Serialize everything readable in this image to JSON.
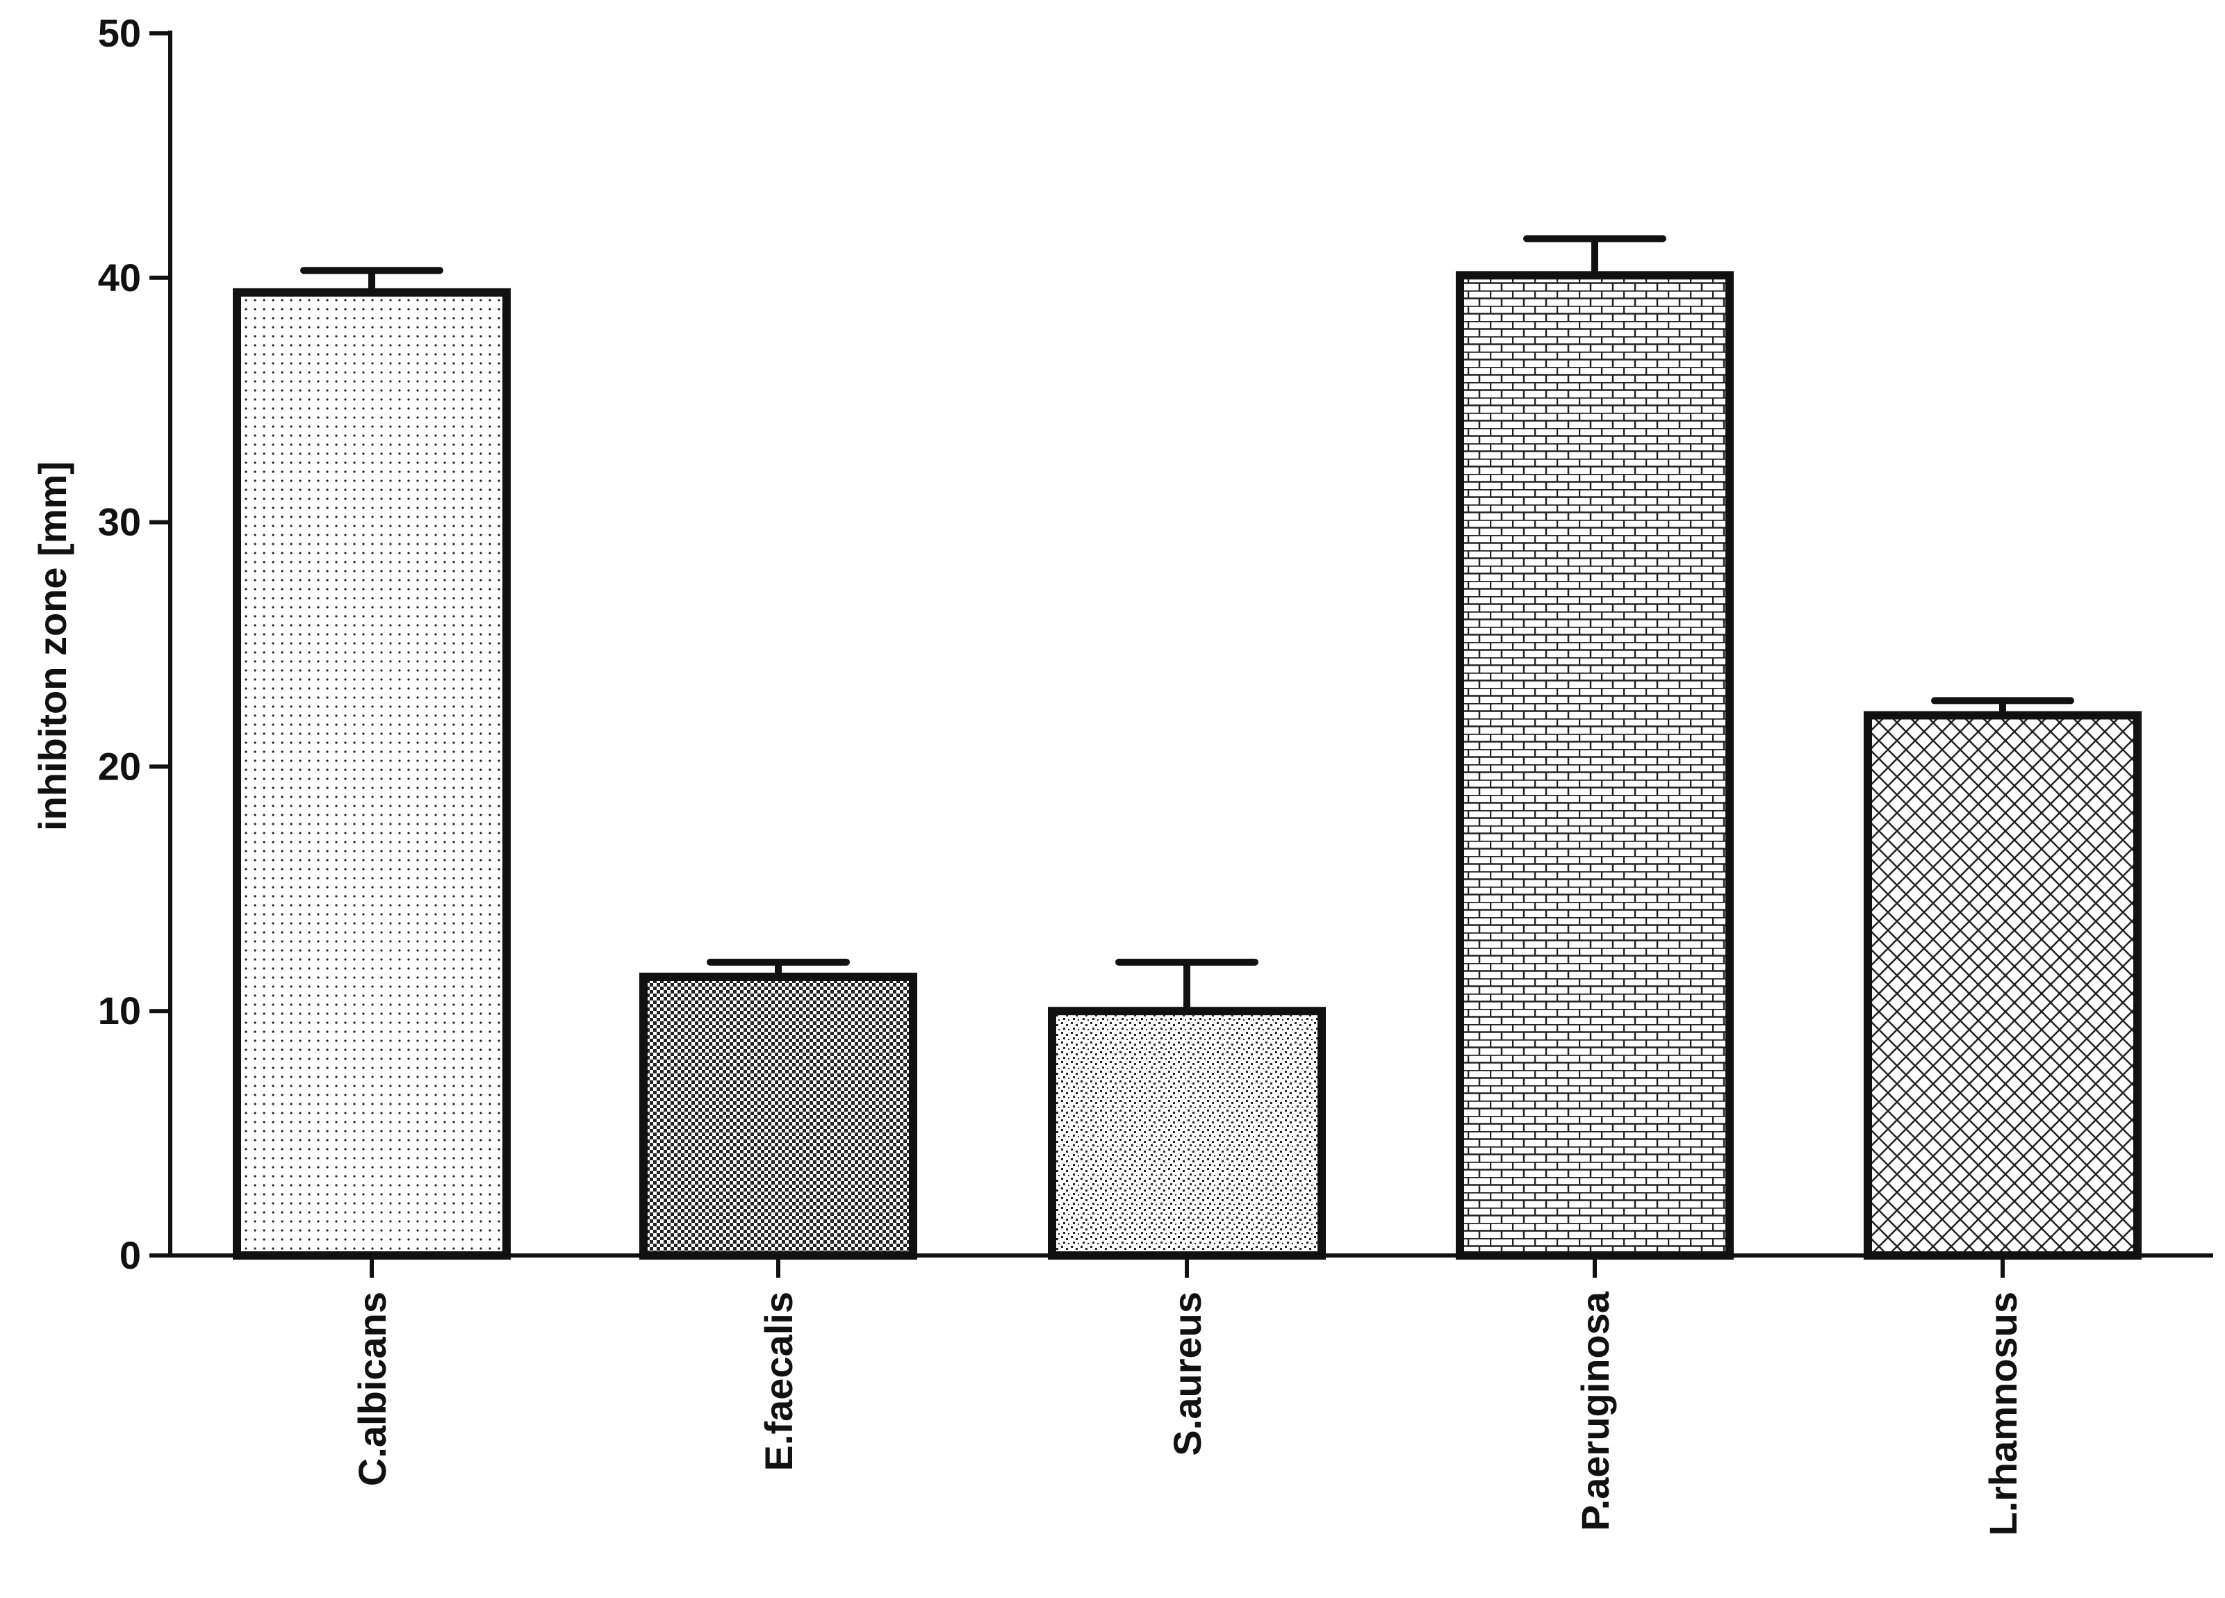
{
  "chart_data": {
    "type": "bar",
    "title": "",
    "xlabel": "",
    "ylabel": "inhibiton zone [mm]",
    "categories": [
      "C.albicans",
      "E.faecalis",
      "S.aureus",
      "P.aeruginosa",
      "L.rhamnosus"
    ],
    "values": [
      39.4,
      11.4,
      10.0,
      40.1,
      22.1
    ],
    "error_bars": [
      0.9,
      0.6,
      2.0,
      1.5,
      0.6
    ],
    "ylim": [
      0,
      50
    ],
    "yticks": [
      0,
      10,
      20,
      30,
      40,
      50
    ],
    "grid": false,
    "legend": "none",
    "bar_patterns": [
      "fine-dots",
      "checker",
      "stipple",
      "brick",
      "diagonal-crosshatch"
    ],
    "colors": {
      "bar_stroke": "#111111",
      "bar_pattern": "#222222",
      "axis": "#111111",
      "background": "#ffffff"
    }
  }
}
